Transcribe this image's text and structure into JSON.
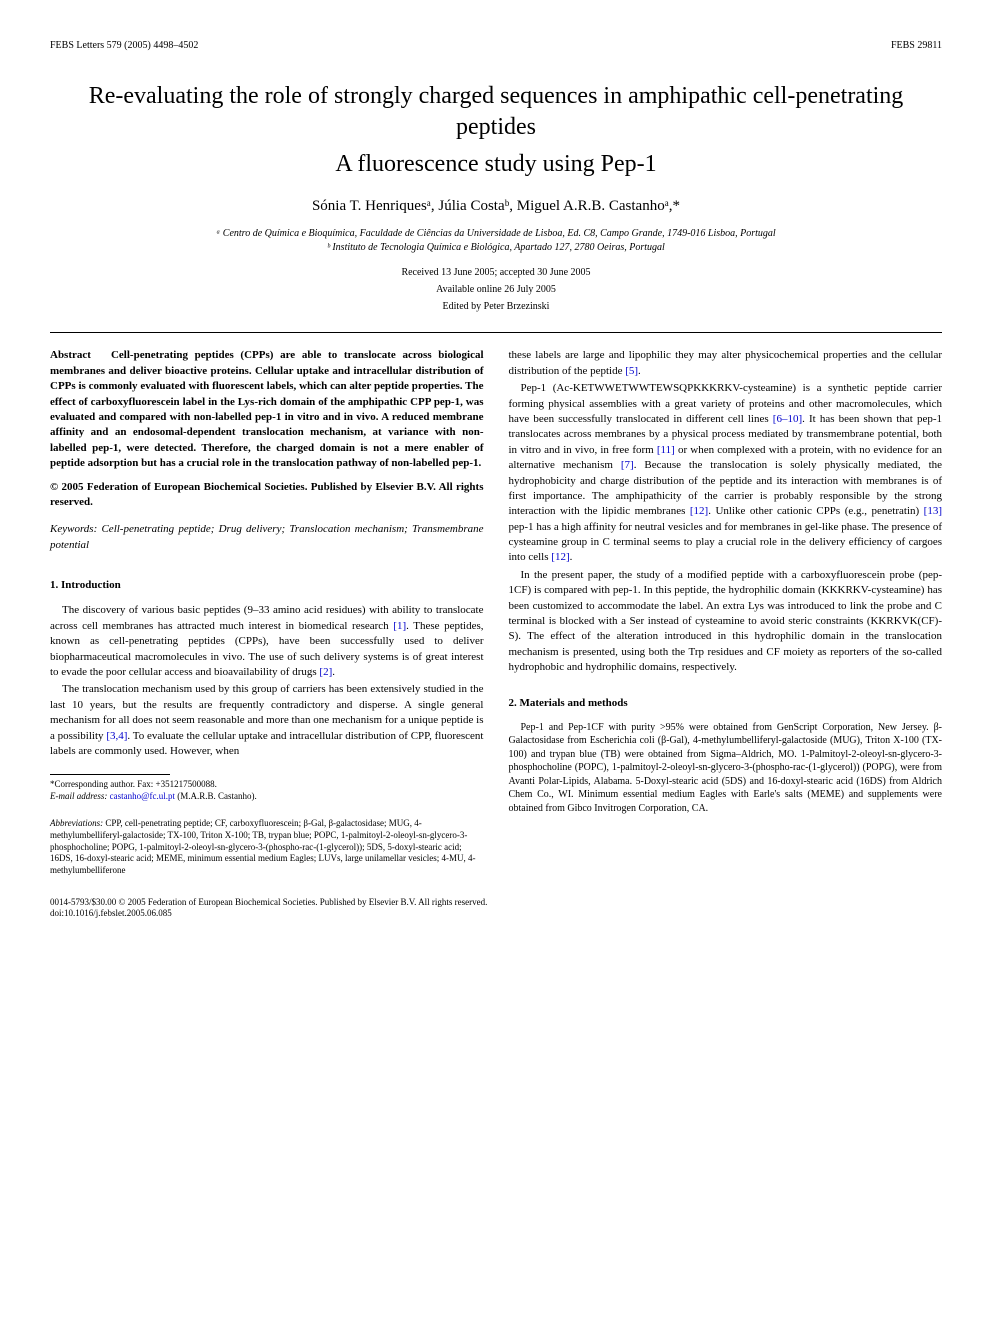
{
  "header": {
    "left": "FEBS Letters 579 (2005) 4498–4502",
    "right": "FEBS 29811"
  },
  "title": {
    "line1": "Re-evaluating the role of strongly charged sequences in amphipathic cell-penetrating peptides",
    "line2": "A fluorescence study using Pep-1"
  },
  "authors": "Sónia T. Henriquesᵃ, Júlia Costaᵇ, Miguel A.R.B. Castanhoᵃ,*",
  "affiliations": {
    "a": "ᵃ Centro de Química e Bioquímica, Faculdade de Ciências da Universidade de Lisboa, Ed. C8, Campo Grande, 1749-016 Lisboa, Portugal",
    "b": "ᵇ Instituto de Tecnologia Química e Biológica, Apartado 127, 2780 Oeiras, Portugal"
  },
  "dates": {
    "received": "Received 13 June 2005; accepted 30 June 2005",
    "available": "Available online 26 July 2005"
  },
  "editor": "Edited by Peter Brzezinski",
  "abstract": {
    "label": "Abstract",
    "text": "Cell-penetrating peptides (CPPs) are able to translocate across biological membranes and deliver bioactive proteins. Cellular uptake and intracellular distribution of CPPs is commonly evaluated with fluorescent labels, which can alter peptide properties. The effect of carboxyfluorescein label in the Lys-rich domain of the amphipathic CPP pep-1, was evaluated and compared with non-labelled pep-1 in vitro and in vivo. A reduced membrane affinity and an endosomal-dependent translocation mechanism, at variance with non-labelled pep-1, were detected. Therefore, the charged domain is not a mere enabler of peptide adsorption but has a crucial role in the translocation pathway of non-labelled pep-1.",
    "copyright": "© 2005 Federation of European Biochemical Societies. Published by Elsevier B.V. All rights reserved."
  },
  "keywords": {
    "label": "Keywords:",
    "text": "Cell-penetrating peptide; Drug delivery; Translocation mechanism; Transmembrane potential"
  },
  "sections": {
    "intro": {
      "heading": "1. Introduction",
      "p1": "The discovery of various basic peptides (9–33 amino acid residues) with ability to translocate across cell membranes has attracted much interest in biomedical research ",
      "p1_ref": "[1]",
      "p1_cont": ". These peptides, known as cell-penetrating peptides (CPPs), have been successfully used to deliver biopharmaceutical macromolecules in vivo. The use of such delivery systems is of great interest to evade the poor cellular access and bioavailability of drugs ",
      "p1_ref2": "[2]",
      "p1_end": ".",
      "p2": "The translocation mechanism used by this group of carriers has been extensively studied in the last 10 years, but the results are frequently contradictory and disperse. A single general mechanism for all does not seem reasonable and more than one mechanism for a unique peptide is a possibility ",
      "p2_ref": "[3,4]",
      "p2_cont": ". To evaluate the cellular uptake and intracellular distribution of CPP, fluorescent labels are commonly used. However, when",
      "p3_right": "these labels are large and lipophilic they may alter physicochemical properties and the cellular distribution of the peptide ",
      "p3_ref": "[5]",
      "p3_end": ".",
      "p4": "Pep-1 (Ac-KETWWETWWTEWSQPKKKRKV-cysteamine) is a synthetic peptide carrier forming physical assemblies with a great variety of proteins and other macromolecules, which have been successfully translocated in different cell lines ",
      "p4_ref": "[6–10]",
      "p4_cont": ". It has been shown that pep-1 translocates across membranes by a physical process mediated by transmembrane potential, both in vitro and in vivo, in free form ",
      "p4_ref2": "[11]",
      "p4_cont2": " or when complexed with a protein, with no evidence for an alternative mechanism ",
      "p4_ref3": "[7]",
      "p4_cont3": ". Because the translocation is solely physically mediated, the hydrophobicity and charge distribution of the peptide and its interaction with membranes is of first importance. The amphipathicity of the carrier is probably responsible by the strong interaction with the lipidic membranes ",
      "p4_ref4": "[12]",
      "p4_cont4": ". Unlike other cationic CPPs (e.g., penetratin) ",
      "p4_ref5": "[13]",
      "p4_cont5": " pep-1 has a high affinity for neutral vesicles and for membranes in gel-like phase. The presence of cysteamine group in C terminal seems to play a crucial role in the delivery efficiency of cargoes into cells ",
      "p4_ref6": "[12]",
      "p4_end2": ".",
      "p5": "In the present paper, the study of a modified peptide with a carboxyfluorescein probe (pep-1CF) is compared with pep-1. In this peptide, the hydrophilic domain (KKKRKV-cysteamine) has been customized to accommodate the label. An extra Lys was introduced to link the probe and C terminal is blocked with a Ser instead of cysteamine to avoid steric constraints (KKRKVK(CF)-S). The effect of the alteration introduced in this hydrophilic domain in the translocation mechanism is presented, using both the Trp residues and CF moiety as reporters of the so-called hydrophobic and hydrophilic domains, respectively."
    },
    "methods": {
      "heading": "2. Materials and methods",
      "p1": "Pep-1 and Pep-1CF with purity >95% were obtained from GenScript Corporation, New Jersey. β-Galactosidase from Escherichia coli (β-Gal), 4-methylumbelliferyl-galactoside (MUG), Triton X-100 (TX-100) and trypan blue (TB) were obtained from Sigma–Aldrich, MO. 1-Palmitoyl-2-oleoyl-sn-glycero-3-phosphocholine (POPC), 1-palmitoyl-2-oleoyl-sn-glycero-3-(phospho-rac-(1-glycerol)) (POPG), were from Avanti Polar-Lipids, Alabama. 5-Doxyl-stearic acid (5DS) and 16-doxyl-stearic acid (16DS) from Aldrich Chem Co., WI. Minimum essential medium Eagles with Earle's salts (MEME) and supplements were obtained from Gibco Invitrogen Corporation, CA."
    }
  },
  "footnotes": {
    "corresponding": "*Corresponding author. Fax: +351217500088.",
    "email_label": "E-mail address:",
    "email": "castanho@fc.ul.pt",
    "email_name": "(M.A.R.B. Castanho).",
    "abbreviations_label": "Abbreviations:",
    "abbreviations": "CPP, cell-penetrating peptide; CF, carboxyfluorescein; β-Gal, β-galactosidase; MUG, 4-methylumbelliferyl-galactoside; TX-100, Triton X-100; TB, trypan blue; POPC, 1-palmitoyl-2-oleoyl-sn-glycero-3-phosphocholine; POPG, 1-palmitoyl-2-oleoyl-sn-glycero-3-(phospho-rac-(1-glycerol)); 5DS, 5-doxyl-stearic acid; 16DS, 16-doxyl-stearic acid; MEME, minimum essential medium Eagles; LUVs, large unilamellar vesicles; 4-MU, 4-methylumbelliferone"
  },
  "footer": {
    "line1": "0014-5793/$30.00 © 2005 Federation of European Biochemical Societies. Published by Elsevier B.V. All rights reserved.",
    "line2": "doi:10.1016/j.febslet.2005.06.085"
  }
}
